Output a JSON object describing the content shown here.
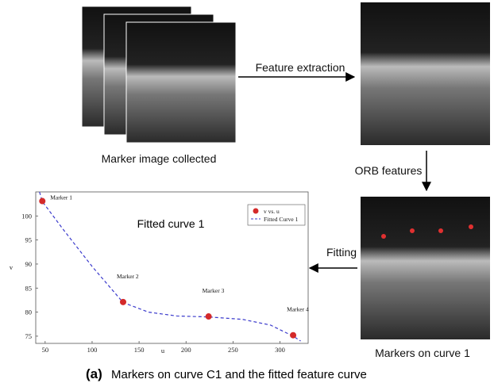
{
  "steps": {
    "collected": "Marker image collected",
    "extraction": "Feature extraction",
    "orb": "ORB features",
    "fitting": "Fitting",
    "markers": "Markers on curve 1"
  },
  "figure": {
    "label": "(a)",
    "caption": "Markers on curve C1 and the fitted feature curve"
  },
  "chart_data": {
    "type": "scatter",
    "title": "Fitted curve 1",
    "x_label": "u",
    "y_label": "v",
    "xlim": [
      40,
      330
    ],
    "ylim": [
      73.5,
      105
    ],
    "xticks": [
      50,
      100,
      150,
      200,
      250,
      300
    ],
    "yticks": [
      75,
      80,
      85,
      90,
      95,
      100
    ],
    "legend": "upper right",
    "series": [
      {
        "name": "v vs. u",
        "color": "#d42a2a",
        "style": "markers",
        "x": [
          47,
          133,
          224,
          314
        ],
        "values": [
          103.1,
          82.1,
          79.1,
          75.2
        ],
        "point_labels": [
          "Marker 1",
          "Marker 2",
          "Marker 3",
          "Marker 4"
        ]
      },
      {
        "name": "Fitted Curve 1",
        "color": "#3b3bcc",
        "style": "dashed",
        "x": [
          44,
          47,
          70,
          100,
          133,
          160,
          190,
          224,
          260,
          290,
          314,
          322
        ],
        "values": [
          105,
          103,
          97,
          89.5,
          82,
          80,
          79.2,
          79,
          78.5,
          77.3,
          75,
          74
        ]
      }
    ]
  }
}
